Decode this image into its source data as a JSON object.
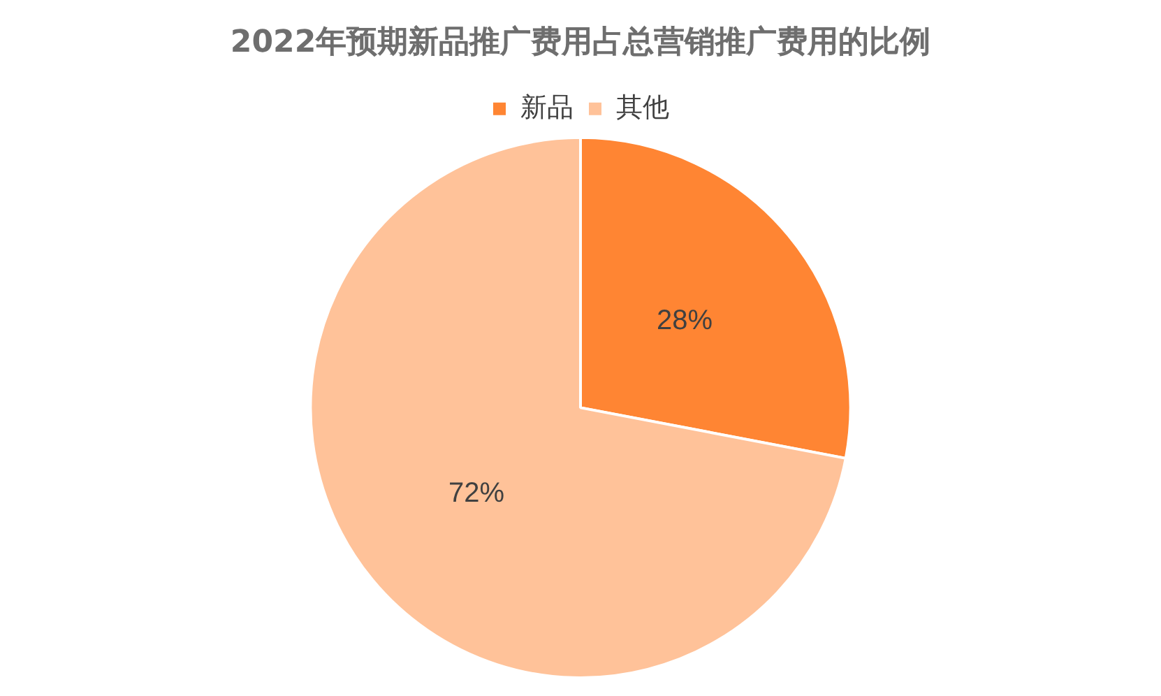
{
  "chart_data": {
    "type": "pie",
    "title": "2022年预期新品推广费用占总营销推广费用的比例",
    "categories": [
      "新品",
      "其他"
    ],
    "values": [
      28,
      72
    ],
    "colors": [
      "#ff8533",
      "#ffc299"
    ],
    "value_labels": [
      "28%",
      "72%"
    ],
    "legend": "top"
  }
}
